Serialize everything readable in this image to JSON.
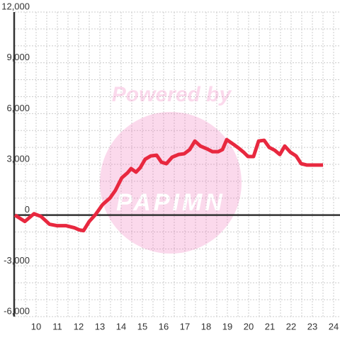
{
  "chart_data": {
    "type": "line",
    "watermark": {
      "line1": "Powered by",
      "line2": "PAPIMN"
    },
    "x": [
      9.0,
      9.47,
      9.9,
      10.23,
      10.63,
      10.97,
      11.4,
      11.8,
      12.03,
      12.23,
      12.5,
      12.8,
      13.13,
      13.47,
      13.73,
      14.03,
      14.3,
      14.47,
      14.7,
      14.9,
      15.13,
      15.4,
      15.67,
      15.9,
      16.13,
      16.4,
      16.7,
      16.97,
      17.23,
      17.47,
      17.73,
      18.03,
      18.3,
      18.57,
      18.77,
      18.97,
      19.3,
      19.57,
      19.77,
      19.97,
      20.23,
      20.47,
      20.73,
      20.97,
      21.23,
      21.47,
      21.7,
      21.97,
      22.23,
      22.47,
      22.73,
      23.0,
      23.27,
      23.5
    ],
    "series": [
      {
        "color": "#e8283f",
        "values": [
          0,
          -375,
          80,
          -80,
          -540,
          -625,
          -625,
          -750,
          -875,
          -920,
          -375,
          40,
          625,
          1000,
          1460,
          2200,
          2500,
          2750,
          2540,
          2800,
          3300,
          3500,
          3540,
          3125,
          3040,
          3420,
          3580,
          3625,
          3875,
          4375,
          4080,
          3920,
          3750,
          3750,
          3875,
          4460,
          4170,
          3920,
          3710,
          3460,
          3460,
          4375,
          4420,
          4000,
          3830,
          3580,
          4080,
          3710,
          3500,
          3040,
          2960,
          2960,
          2960,
          2960
        ]
      }
    ],
    "xlim": [
      9,
      24.3
    ],
    "ylim": [
      -6000,
      12000
    ],
    "xticks": [
      10,
      11,
      12,
      13,
      14,
      15,
      16,
      17,
      18,
      19,
      20,
      21,
      22,
      23,
      24
    ],
    "yticks": [
      {
        "value": -6000,
        "label": "-6,000"
      },
      {
        "value": -3000,
        "label": "-3,000"
      },
      0,
      {
        "value": 3000,
        "label": "3,000"
      },
      {
        "value": 6000,
        "label": "6,000"
      },
      {
        "value": 9000,
        "label": "9,000"
      },
      {
        "value": 12000,
        "label": "12,000"
      }
    ],
    "x_minor_ticks": [
      9.5,
      10.5,
      11.5,
      12.5,
      13.5,
      14.5,
      15.5,
      16.5,
      17.5,
      18.5,
      19.5,
      20.5,
      21.5,
      22.5,
      23.5
    ],
    "y_minor_ticks": [
      -5000,
      -4000,
      -2000,
      -1000,
      1000,
      2000,
      4000,
      5000,
      7000,
      8000,
      10000,
      11000
    ],
    "grid": true
  }
}
